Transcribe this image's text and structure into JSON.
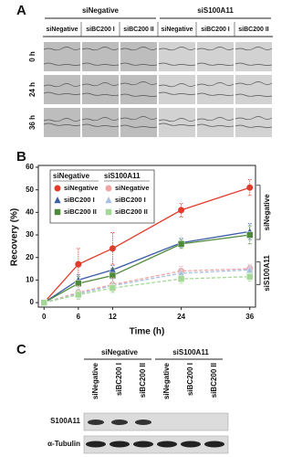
{
  "panel_a": {
    "label": "A",
    "groups": [
      "siNegative",
      "siS100A11"
    ],
    "columns": [
      "siNegative",
      "siBC200 I",
      "siBC200 II",
      "siNegative",
      "siBC200 I",
      "siBC200 II"
    ],
    "rows": [
      "0 h",
      "24 h",
      "36 h"
    ]
  },
  "chart_data": {
    "type": "line",
    "panel_label": "B",
    "xlabel": "Time (h)",
    "ylabel": "Recovery (%)",
    "x": [
      0,
      6,
      12,
      24,
      36
    ],
    "xlim": [
      -1,
      37
    ],
    "xticks": [
      0,
      6,
      12,
      24,
      36
    ],
    "ylim": [
      -2,
      60
    ],
    "yticks": [
      0,
      10,
      20,
      30,
      40,
      50,
      60
    ],
    "legend_groups": [
      "siNegative",
      "siS100A11"
    ],
    "bracket_labels": [
      "siNegative",
      "siS100A11"
    ],
    "series": [
      {
        "name": "siNegative",
        "color": "#e33b2b",
        "marker": "circle",
        "dashed": false,
        "values": [
          0,
          17,
          24,
          41,
          51
        ],
        "errors": [
          null,
          7,
          7,
          3,
          3.5
        ]
      },
      {
        "name": "siBC200 I",
        "color": "#3d5da6",
        "marker": "triangle",
        "dashed": false,
        "values": [
          0,
          10,
          14.5,
          26.5,
          31.5
        ],
        "errors": [
          null,
          2.5,
          2,
          2,
          3.5
        ]
      },
      {
        "name": "siBC200 II",
        "color": "#4f8a3b",
        "marker": "square",
        "dashed": false,
        "values": [
          0,
          8.5,
          12,
          26,
          30
        ],
        "errors": [
          null,
          3,
          3,
          2,
          4
        ]
      },
      {
        "name": "siNegative",
        "color": "#f1a4a4",
        "marker": "circle",
        "dashed": true,
        "values": [
          0,
          4.5,
          8,
          14,
          15
        ],
        "errors": [
          null,
          3,
          3,
          2,
          2
        ]
      },
      {
        "name": "siBC200 I",
        "color": "#a8c0e2",
        "marker": "triangle",
        "dashed": true,
        "values": [
          0,
          4,
          7.5,
          13,
          14.5
        ],
        "errors": [
          null,
          2,
          3,
          2,
          2
        ]
      },
      {
        "name": "siBC200 II",
        "color": "#a5d897",
        "marker": "square",
        "dashed": true,
        "values": [
          0,
          3.5,
          6.5,
          10.5,
          11.5
        ],
        "errors": [
          null,
          2,
          2,
          2,
          2
        ]
      }
    ]
  },
  "panel_c": {
    "label": "C",
    "groups": [
      "siNegative",
      "siS100A11"
    ],
    "columns": [
      "siNegative",
      "siBC200 I",
      "siBC200 II",
      "siNegative",
      "siBC200 I",
      "siBC200 II"
    ],
    "rows": [
      "S100A11",
      "α-Tubulin"
    ]
  }
}
